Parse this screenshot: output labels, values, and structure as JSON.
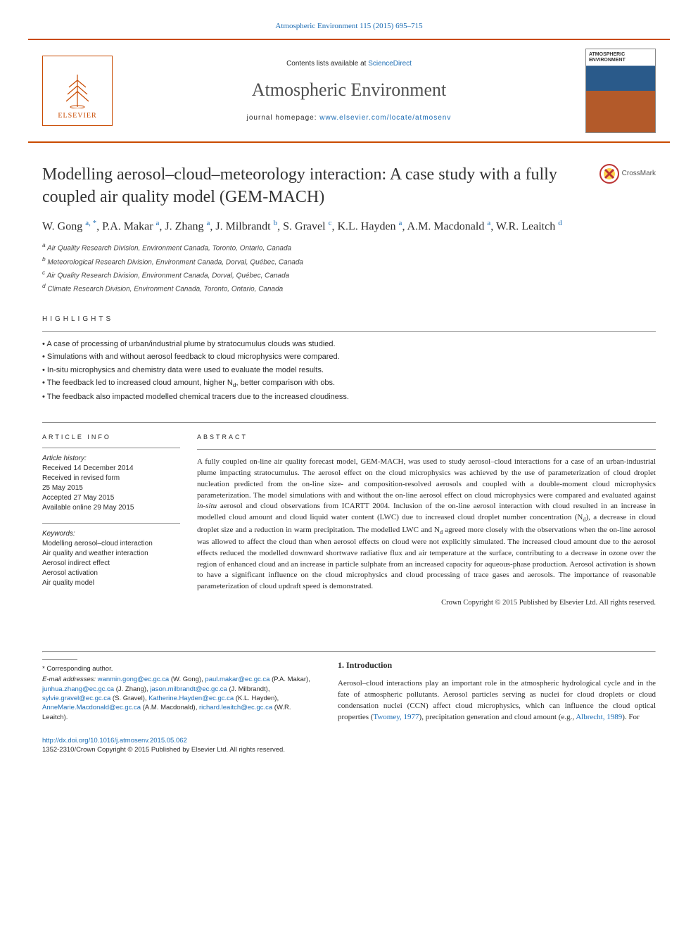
{
  "top_link": {
    "text": "Atmospheric Environment 115 (2015) 695–715",
    "color": "#1a6bb3"
  },
  "masthead": {
    "publisher_name": "ELSEVIER",
    "contents_prefix": "Contents lists available at ",
    "contents_link": "ScienceDirect",
    "journal_name": "Atmospheric Environment",
    "homepage_prefix": "journal homepage: ",
    "homepage_link": "www.elsevier.com/locate/atmosenv",
    "cover_title": "ATMOSPHERIC ENVIRONMENT"
  },
  "title": "Modelling aerosol–cloud–meteorology interaction: A case study with a fully coupled air quality model (GEM-MACH)",
  "crossmark": "CrossMark",
  "authors_html": "W. Gong <a>a, *</a>, P.A. Makar <a>a</a>, J. Zhang <a>a</a>, J. Milbrandt <a>b</a>, S. Gravel <a>c</a>, K.L. Hayden <a>a</a>, A.M. Macdonald <a>a</a>, W.R. Leaitch <a>d</a>",
  "affiliations": [
    "a Air Quality Research Division, Environment Canada, Toronto, Ontario, Canada",
    "b Meteorological Research Division, Environment Canada, Dorval, Québec, Canada",
    "c Air Quality Research Division, Environment Canada, Dorval, Québec, Canada",
    "d Climate Research Division, Environment Canada, Toronto, Ontario, Canada"
  ],
  "highlights_label": "HIGHLIGHTS",
  "highlights": [
    "A case of processing of urban/industrial plume by stratocumulus clouds was studied.",
    "Simulations with and without aerosol feedback to cloud microphysics were compared.",
    "In-situ microphysics and chemistry data were used to evaluate the model results.",
    "The feedback led to increased cloud amount, higher N_d, better comparison with obs.",
    "The feedback also impacted modelled chemical tracers due to the increased cloudiness."
  ],
  "article_info_label": "ARTICLE INFO",
  "article_history_label": "Article history:",
  "article_history": [
    "Received 14 December 2014",
    "Received in revised form",
    "25 May 2015",
    "Accepted 27 May 2015",
    "Available online 29 May 2015"
  ],
  "keywords_label": "Keywords:",
  "keywords": [
    "Modelling aerosol–cloud interaction",
    "Air quality and weather interaction",
    "Aerosol indirect effect",
    "Aerosol activation",
    "Air quality model"
  ],
  "abstract_label": "ABSTRACT",
  "abstract_text": "A fully coupled on-line air quality forecast model, GEM-MACH, was used to study aerosol–cloud interactions for a case of an urban-industrial plume impacting stratocumulus. The aerosol effect on the cloud microphysics was achieved by the use of parameterization of cloud droplet nucleation predicted from the on-line size- and composition-resolved aerosols and coupled with a double-moment cloud microphysics parameterization. The model simulations with and without the on-line aerosol effect on cloud microphysics were compared and evaluated against in-situ aerosol and cloud observations from ICARTT 2004. Inclusion of the on-line aerosol interaction with cloud resulted in an increase in modelled cloud amount and cloud liquid water content (LWC) due to increased cloud droplet number concentration (N_d), a decrease in cloud droplet size and a reduction in warm precipitation. The modelled LWC and N_d agreed more closely with the observations when the on-line aerosol was allowed to affect the cloud than when aerosol effects on cloud were not explicitly simulated. The increased cloud amount due to the aerosol effects reduced the modelled downward shortwave radiative flux and air temperature at the surface, contributing to a decrease in ozone over the region of enhanced cloud and an increase in particle sulphate from an increased capacity for aqueous-phase production. Aerosol activation is shown to have a significant influence on the cloud microphysics and cloud processing of trace gases and aerosols. The importance of reasonable parameterization of cloud updraft speed is demonstrated.",
  "abstract_copyright": "Crown Copyright © 2015 Published by Elsevier Ltd. All rights reserved.",
  "corresponding_label": "* Corresponding author.",
  "emails_label": "E-mail addresses:",
  "emails": [
    {
      "addr": "wanmin.gong@ec.gc.ca",
      "who": "(W. Gong)"
    },
    {
      "addr": "paul.makar@ec.gc.ca",
      "who": "(P.A. Makar)"
    },
    {
      "addr": "junhua.zhang@ec.gc.ca",
      "who": "(J. Zhang)"
    },
    {
      "addr": "jason.milbrandt@ec.gc.ca",
      "who": "(J. Milbrandt)"
    },
    {
      "addr": "sylvie.gravel@ec.gc.ca",
      "who": "(S. Gravel)"
    },
    {
      "addr": "Katherine.Hayden@ec.gc.ca",
      "who": "(K.L. Hayden)"
    },
    {
      "addr": "AnneMarie.Macdonald@ec.gc.ca",
      "who": "(A.M. Macdonald)"
    },
    {
      "addr": "richard.leaitch@ec.gc.ca",
      "who": "(W.R. Leaitch)"
    }
  ],
  "intro_heading": "1.  Introduction",
  "intro_text_pre": "Aerosol–cloud interactions play an important role in the atmospheric hydrological cycle and in the fate of atmospheric pollutants. Aerosol particles serving as nuclei for cloud droplets or cloud condensation nuclei (CCN) affect cloud microphysics, which can influence the cloud optical properties (",
  "intro_link1": "Twomey, 1977",
  "intro_text_mid": "), precipitation generation and cloud amount (e.g., ",
  "intro_link2": "Albrecht, 1989",
  "intro_text_post": "). For",
  "doi": "http://dx.doi.org/10.1016/j.atmosenv.2015.05.062",
  "issn_line": "1352-2310/Crown Copyright © 2015 Published by Elsevier Ltd. All rights reserved.",
  "colors": {
    "accent": "#c94a00",
    "link": "#1a6bb3",
    "text": "#2b2b2b",
    "rule": "#888888"
  }
}
